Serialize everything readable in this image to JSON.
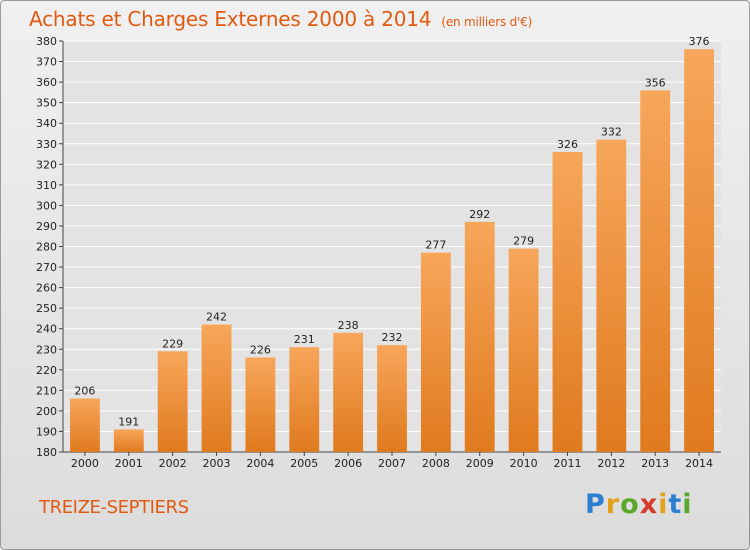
{
  "header": {
    "title": "Achats et Charges Externes 2000 à 2014",
    "unit": "(en milliers d'€)"
  },
  "footer": {
    "city": "TREIZE-SEPTIERS",
    "logo_letters": [
      {
        "char": "P",
        "color": "#2a7fd0"
      },
      {
        "char": "r",
        "color": "#e3a11a"
      },
      {
        "char": "o",
        "color": "#5aa82a"
      },
      {
        "char": "x",
        "color": "#d63a2a"
      },
      {
        "char": "i",
        "color": "#e3a11a"
      },
      {
        "char": "t",
        "color": "#2a7fd0"
      },
      {
        "char": "i",
        "color": "#5aa82a"
      }
    ]
  },
  "colors": {
    "bar_light": "#f7a65a",
    "bar_dark": "#e07a1e",
    "accent": "#e05a10"
  },
  "chart_data": {
    "type": "bar",
    "title": "Achats et Charges Externes 2000 à 2014",
    "subtitle": "(en milliers d'€)",
    "categories": [
      "2000",
      "2001",
      "2002",
      "2003",
      "2004",
      "2005",
      "2006",
      "2007",
      "2008",
      "2009",
      "2010",
      "2011",
      "2012",
      "2013",
      "2014"
    ],
    "values": [
      206,
      191,
      229,
      242,
      226,
      231,
      238,
      232,
      277,
      292,
      279,
      326,
      332,
      356,
      376
    ],
    "ylim": [
      180,
      380
    ],
    "ytick_step": 10,
    "grid": true,
    "xlabel": "",
    "ylabel": ""
  }
}
